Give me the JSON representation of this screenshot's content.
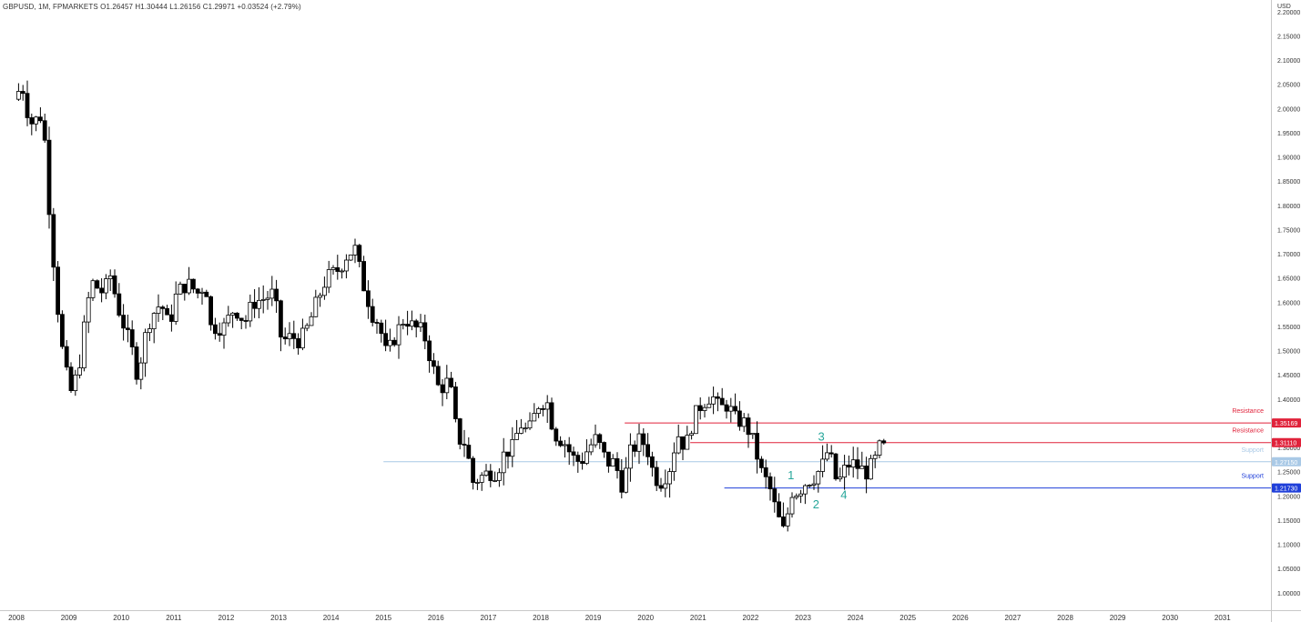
{
  "header": {
    "symbol_line": "GBPUSD, 1M, FPMARKETS",
    "ohlc": "O1.26457 H1.30444 L1.26156 C1.29971 +0.03524 (+2.79%)"
  },
  "axis": {
    "currency": "USD"
  },
  "colors": {
    "bull_body": "#ffffff",
    "bear_body": "#000000",
    "wick": "#000000",
    "resistance": "#e0223a",
    "support_light": "#a9c9e6",
    "support_dark": "#1f3fd9",
    "wave_labels": "#26a69a"
  },
  "chart_data": {
    "type": "candlestick",
    "title": "GBPUSD, 1M, FPMARKETS",
    "ylim": [
      0.965,
      2.225
    ],
    "y_ticks": [
      "2.20000",
      "2.15000",
      "2.10000",
      "2.05000",
      "2.00000",
      "1.95000",
      "1.90000",
      "1.85000",
      "1.80000",
      "1.75000",
      "1.70000",
      "1.65000",
      "1.60000",
      "1.55000",
      "1.50000",
      "1.45000",
      "1.40000",
      "1.35000",
      "1.30000",
      "1.25000",
      "1.20000",
      "1.15000",
      "1.10000",
      "1.05000",
      "1.00000"
    ],
    "x_ticks": [
      "2008",
      "2009",
      "2010",
      "2011",
      "2012",
      "2013",
      "2014",
      "2015",
      "2016",
      "2017",
      "2018",
      "2019",
      "2020",
      "2021",
      "2022",
      "2023",
      "2024",
      "2025",
      "2026",
      "2027",
      "2028",
      "2029",
      "2030",
      "2031"
    ],
    "x_range": [
      2008.0,
      2031.3
    ],
    "anchors": [
      [
        2008.0,
        2.02
      ],
      [
        2008.15,
        2.05
      ],
      [
        2008.3,
        1.97
      ],
      [
        2008.45,
        1.98
      ],
      [
        2008.55,
        1.99
      ],
      [
        2008.65,
        1.82
      ],
      [
        2008.8,
        1.62
      ],
      [
        2008.95,
        1.47
      ],
      [
        2009.1,
        1.41
      ],
      [
        2009.25,
        1.48
      ],
      [
        2009.4,
        1.6
      ],
      [
        2009.5,
        1.64
      ],
      [
        2009.7,
        1.62
      ],
      [
        2009.85,
        1.66
      ],
      [
        2009.95,
        1.6
      ],
      [
        2010.1,
        1.55
      ],
      [
        2010.25,
        1.5
      ],
      [
        2010.35,
        1.45
      ],
      [
        2010.5,
        1.53
      ],
      [
        2010.6,
        1.57
      ],
      [
        2010.8,
        1.6
      ],
      [
        2010.95,
        1.55
      ],
      [
        2011.1,
        1.62
      ],
      [
        2011.3,
        1.64
      ],
      [
        2011.5,
        1.62
      ],
      [
        2011.65,
        1.64
      ],
      [
        2011.75,
        1.55
      ],
      [
        2012.0,
        1.55
      ],
      [
        2012.2,
        1.59
      ],
      [
        2012.4,
        1.56
      ],
      [
        2012.55,
        1.6
      ],
      [
        2012.8,
        1.61
      ],
      [
        2012.95,
        1.62
      ],
      [
        2013.1,
        1.52
      ],
      [
        2013.3,
        1.53
      ],
      [
        2013.45,
        1.52
      ],
      [
        2013.6,
        1.55
      ],
      [
        2013.8,
        1.61
      ],
      [
        2013.95,
        1.65
      ],
      [
        2014.2,
        1.67
      ],
      [
        2014.35,
        1.7
      ],
      [
        2014.5,
        1.71
      ],
      [
        2014.65,
        1.64
      ],
      [
        2014.85,
        1.57
      ],
      [
        2014.95,
        1.56
      ],
      [
        2015.1,
        1.49
      ],
      [
        2015.3,
        1.54
      ],
      [
        2015.45,
        1.57
      ],
      [
        2015.6,
        1.55
      ],
      [
        2015.8,
        1.54
      ],
      [
        2015.95,
        1.48
      ],
      [
        2016.1,
        1.42
      ],
      [
        2016.3,
        1.44
      ],
      [
        2016.45,
        1.32
      ],
      [
        2016.6,
        1.31
      ],
      [
        2016.75,
        1.23
      ],
      [
        2016.9,
        1.24
      ],
      [
        2017.05,
        1.25
      ],
      [
        2017.2,
        1.25
      ],
      [
        2017.35,
        1.29
      ],
      [
        2017.5,
        1.3
      ],
      [
        2017.65,
        1.35
      ],
      [
        2017.8,
        1.33
      ],
      [
        2018.0,
        1.39
      ],
      [
        2018.15,
        1.4
      ],
      [
        2018.3,
        1.33
      ],
      [
        2018.5,
        1.31
      ],
      [
        2018.65,
        1.28
      ],
      [
        2018.8,
        1.27
      ],
      [
        2018.95,
        1.3
      ],
      [
        2019.1,
        1.32
      ],
      [
        2019.3,
        1.27
      ],
      [
        2019.45,
        1.27
      ],
      [
        2019.6,
        1.22
      ],
      [
        2019.75,
        1.29
      ],
      [
        2019.95,
        1.32
      ],
      [
        2020.1,
        1.29
      ],
      [
        2020.2,
        1.24
      ],
      [
        2020.35,
        1.23
      ],
      [
        2020.5,
        1.26
      ],
      [
        2020.65,
        1.33
      ],
      [
        2020.8,
        1.3
      ],
      [
        2020.95,
        1.36
      ],
      [
        2021.1,
        1.39
      ],
      [
        2021.3,
        1.41
      ],
      [
        2021.45,
        1.38
      ],
      [
        2021.6,
        1.39
      ],
      [
        2021.75,
        1.36
      ],
      [
        2021.95,
        1.35
      ],
      [
        2022.1,
        1.31
      ],
      [
        2022.25,
        1.25
      ],
      [
        2022.4,
        1.22
      ],
      [
        2022.55,
        1.16
      ],
      [
        2022.7,
        1.12
      ],
      [
        2022.8,
        1.21
      ],
      [
        2022.95,
        1.21
      ],
      [
        2023.1,
        1.23
      ],
      [
        2023.25,
        1.24
      ],
      [
        2023.4,
        1.26
      ],
      [
        2023.5,
        1.29
      ],
      [
        2023.6,
        1.27
      ],
      [
        2023.7,
        1.22
      ],
      [
        2023.8,
        1.25
      ],
      [
        2023.95,
        1.27
      ],
      [
        2024.1,
        1.26
      ],
      [
        2024.25,
        1.25
      ],
      [
        2024.4,
        1.27
      ],
      [
        2024.5,
        1.3
      ]
    ],
    "levels": [
      {
        "label": "Resistance",
        "value": 1.35169,
        "tag": "1.35169",
        "color": "#e0223a",
        "x_start": 2019.6
      },
      {
        "label": "Resistance",
        "value": 1.3111,
        "tag": "1.31110",
        "color": "#e0223a",
        "x_start": 2020.85
      },
      {
        "label": "Support",
        "value": 1.2715,
        "tag": "1.27150",
        "color": "#a9c9e6",
        "x_start": 2015.0
      },
      {
        "label": "Support",
        "value": 1.2173,
        "tag": "1.21730",
        "color": "#1f3fd9",
        "x_start": 2021.5
      }
    ],
    "wave_labels": [
      {
        "text": "1",
        "x": 2022.77,
        "y": 1.235
      },
      {
        "text": "2",
        "x": 2023.25,
        "y": 1.175
      },
      {
        "text": "3",
        "x": 2023.35,
        "y": 1.315
      },
      {
        "text": "4",
        "x": 2023.78,
        "y": 1.195
      }
    ]
  }
}
